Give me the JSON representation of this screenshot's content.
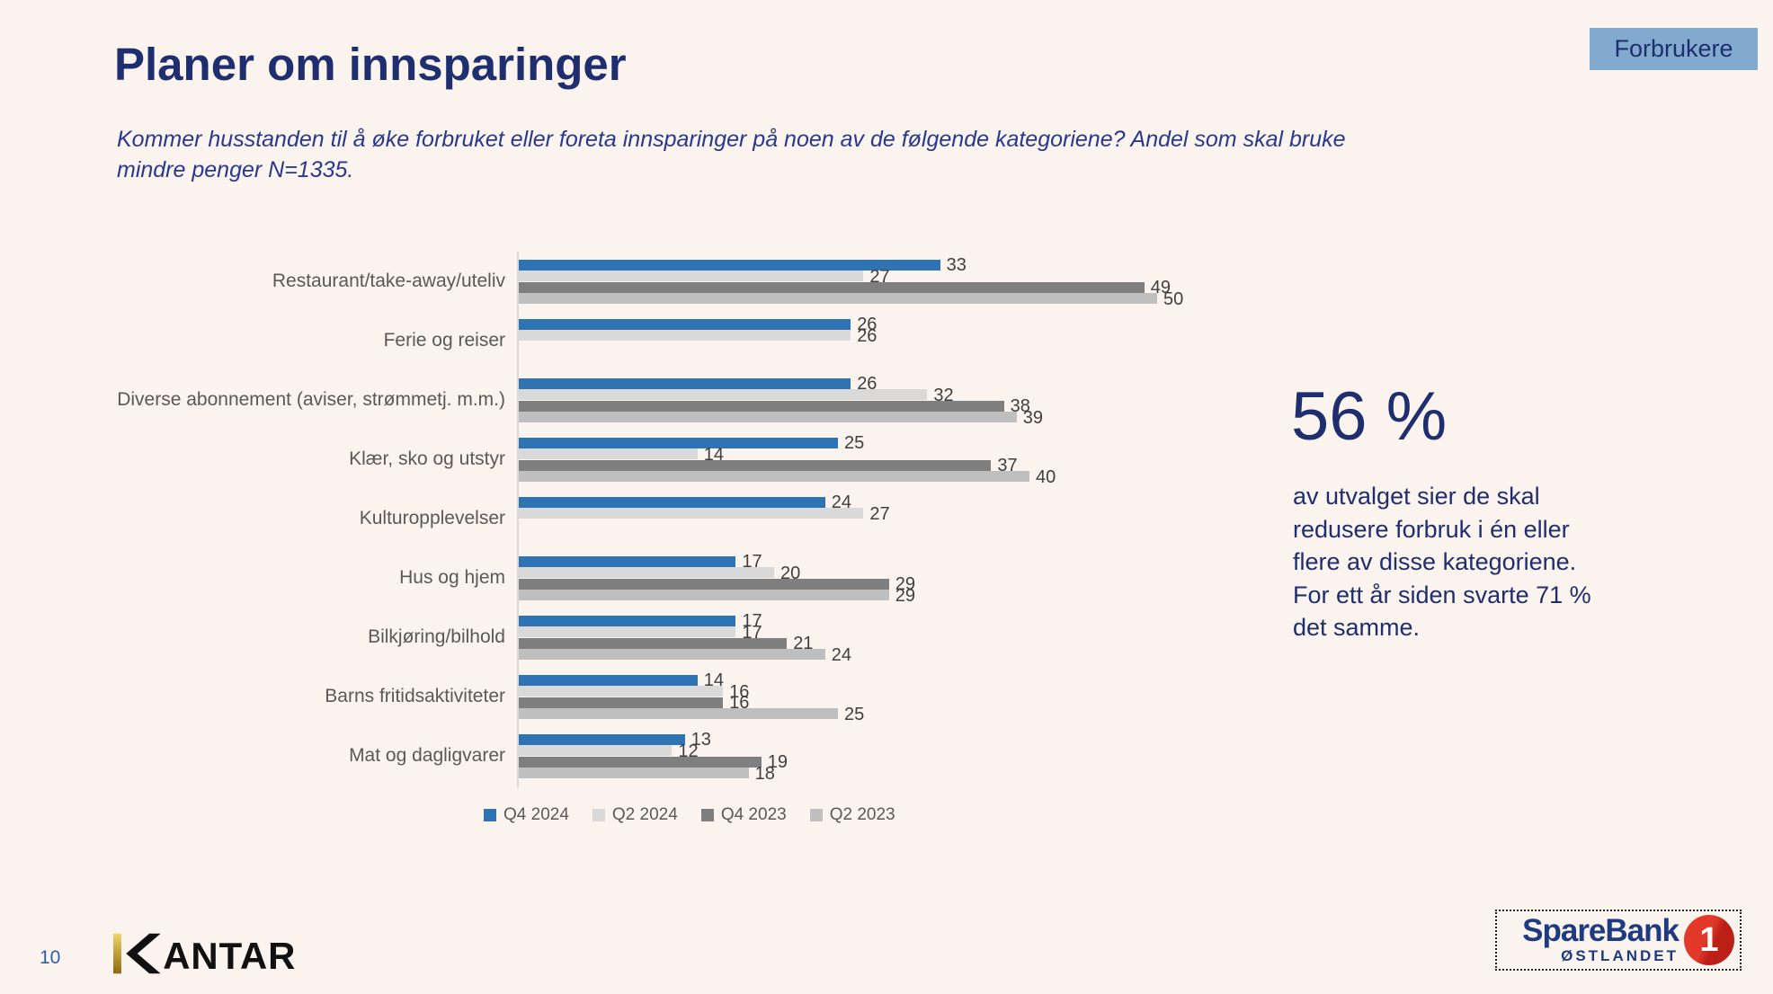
{
  "page": {
    "background": "#FBF3ED",
    "page_number": "10"
  },
  "badge": {
    "label": "Forbrukere",
    "bg": "#82AACE"
  },
  "header": {
    "title": "Planer om innsparinger",
    "subtitle": "Kommer husstanden til å øke forbruket eller foreta innsparinger på noen av de følgende kategoriene? Andel som skal bruke\nmindre penger N=1335."
  },
  "chart_data": {
    "type": "bar",
    "orientation": "horizontal",
    "title": "",
    "xlabel": "",
    "ylabel": "",
    "xlim": [
      0,
      53
    ],
    "grid": false,
    "value_labels": true,
    "legend_position": "bottom",
    "categories": [
      "Restaurant/take-away/uteliv",
      "Ferie og reiser",
      "Diverse abonnement (aviser, strømmetj. m.m.)",
      "Klær, sko og utstyr",
      "Kulturopplevelser",
      "Hus og hjem",
      "Bilkjøring/bilhold",
      "Barns fritidsaktiviteter",
      "Mat og dagligvarer"
    ],
    "series": [
      {
        "name": "Q4 2024",
        "color": "#2E74B5",
        "values": [
          33,
          26,
          26,
          25,
          24,
          17,
          17,
          14,
          13
        ]
      },
      {
        "name": "Q2 2024",
        "color": "#D9D9D9",
        "values": [
          27,
          26,
          32,
          14,
          27,
          20,
          17,
          16,
          12
        ]
      },
      {
        "name": "Q4 2023",
        "color": "#7F7F7F",
        "values": [
          49,
          null,
          38,
          37,
          null,
          29,
          21,
          16,
          19
        ]
      },
      {
        "name": "Q2 2023",
        "color": "#BFBFBF",
        "values": [
          50,
          null,
          39,
          40,
          null,
          29,
          24,
          25,
          18
        ]
      }
    ]
  },
  "highlight": {
    "stat": "56 %",
    "text": "av utvalget sier de skal\nredusere forbruk i én eller\nflere av disse kategoriene.\nFor ett år siden svarte 71 %\ndet samme."
  },
  "footer": {
    "page_number": "10",
    "kantar_full": "KANTAR",
    "kantar_rest": "ANTAR"
  },
  "sparebank": {
    "line1": "SpareBank",
    "line2": "ØSTLANDET",
    "one": "1"
  }
}
